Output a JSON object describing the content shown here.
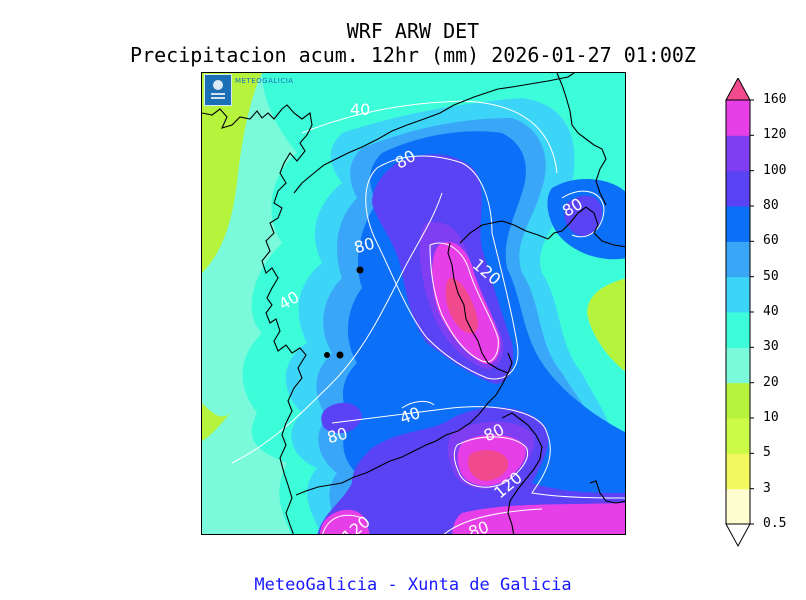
{
  "header": {
    "title": "WRF ARW DET",
    "subtitle": "Precipitacion acum. 12hr (mm) 2026-01-27 01:00Z"
  },
  "map": {
    "logo_text": "METEOGALICIA",
    "contour_labels": [
      {
        "id": "c1",
        "text": "40"
      },
      {
        "id": "c2",
        "text": "80"
      },
      {
        "id": "c3",
        "text": "80"
      },
      {
        "id": "c4",
        "text": "80"
      },
      {
        "id": "c5",
        "text": "120"
      },
      {
        "id": "c6",
        "text": "40"
      },
      {
        "id": "c7",
        "text": "40"
      },
      {
        "id": "c8",
        "text": "80"
      },
      {
        "id": "c9",
        "text": "80"
      },
      {
        "id": "c10",
        "text": "120"
      },
      {
        "id": "c11",
        "text": "120"
      },
      {
        "id": "c12",
        "text": "80"
      }
    ]
  },
  "colorbar": {
    "levels": [
      "0.5",
      "3",
      "5",
      "10",
      "20",
      "30",
      "40",
      "50",
      "60",
      "80",
      "100",
      "120",
      "160"
    ],
    "colors": [
      "#fdfdd0",
      "#f2f95e",
      "#ccfb47",
      "#b6f33c",
      "#7afada",
      "#3cfcd9",
      "#3dd5f7",
      "#3aa6f7",
      "#0b6ff7",
      "#5a42f5",
      "#7f3ef2",
      "#e63fe8",
      "#f24a8e"
    ]
  },
  "footer": {
    "text": "MeteoGalicia - Xunta de Galicia"
  }
}
